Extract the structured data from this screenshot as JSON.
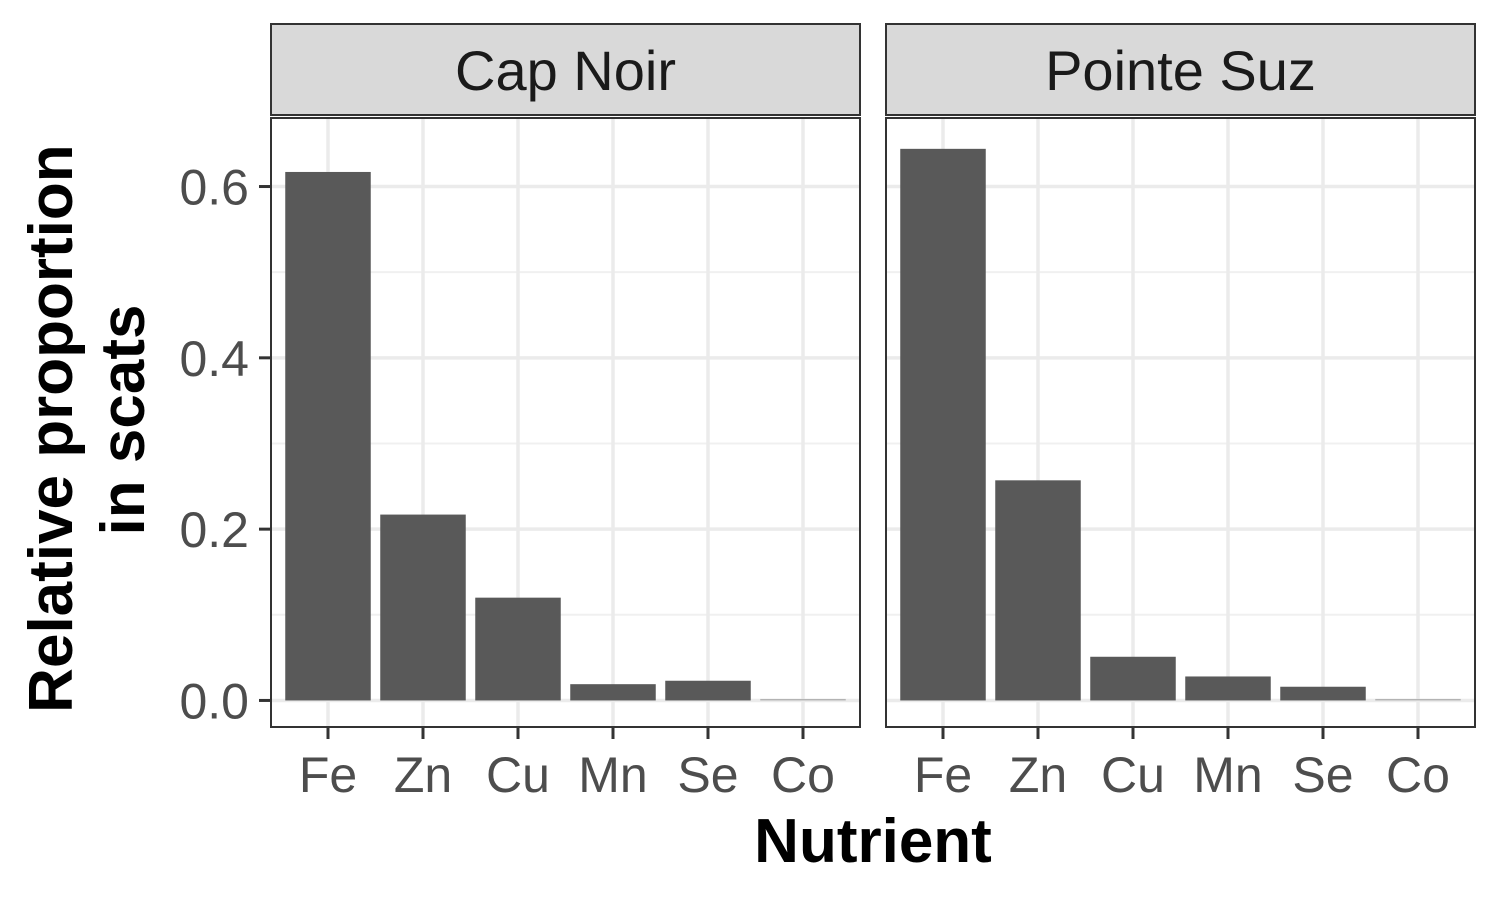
{
  "chart_data": {
    "type": "bar",
    "xlabel": "Nutrient",
    "ylabel_lines": [
      "Relative proportion",
      "in scats"
    ],
    "categories": [
      "Fe",
      "Zn",
      "Cu",
      "Mn",
      "Se",
      "Co"
    ],
    "ylim": [
      -0.031,
      0.68
    ],
    "yticks": [
      0.0,
      0.2,
      0.4,
      0.6
    ],
    "ytick_labels": [
      "0.0",
      "0.2",
      "0.4",
      "0.6"
    ],
    "grid": true,
    "bar_color": "#595959",
    "panels": [
      {
        "facet": "Cap Noir",
        "values": [
          0.617,
          0.217,
          0.12,
          0.019,
          0.023,
          0.0
        ]
      },
      {
        "facet": "Pointe Suz",
        "values": [
          0.644,
          0.257,
          0.051,
          0.028,
          0.016,
          0.0
        ]
      }
    ]
  }
}
